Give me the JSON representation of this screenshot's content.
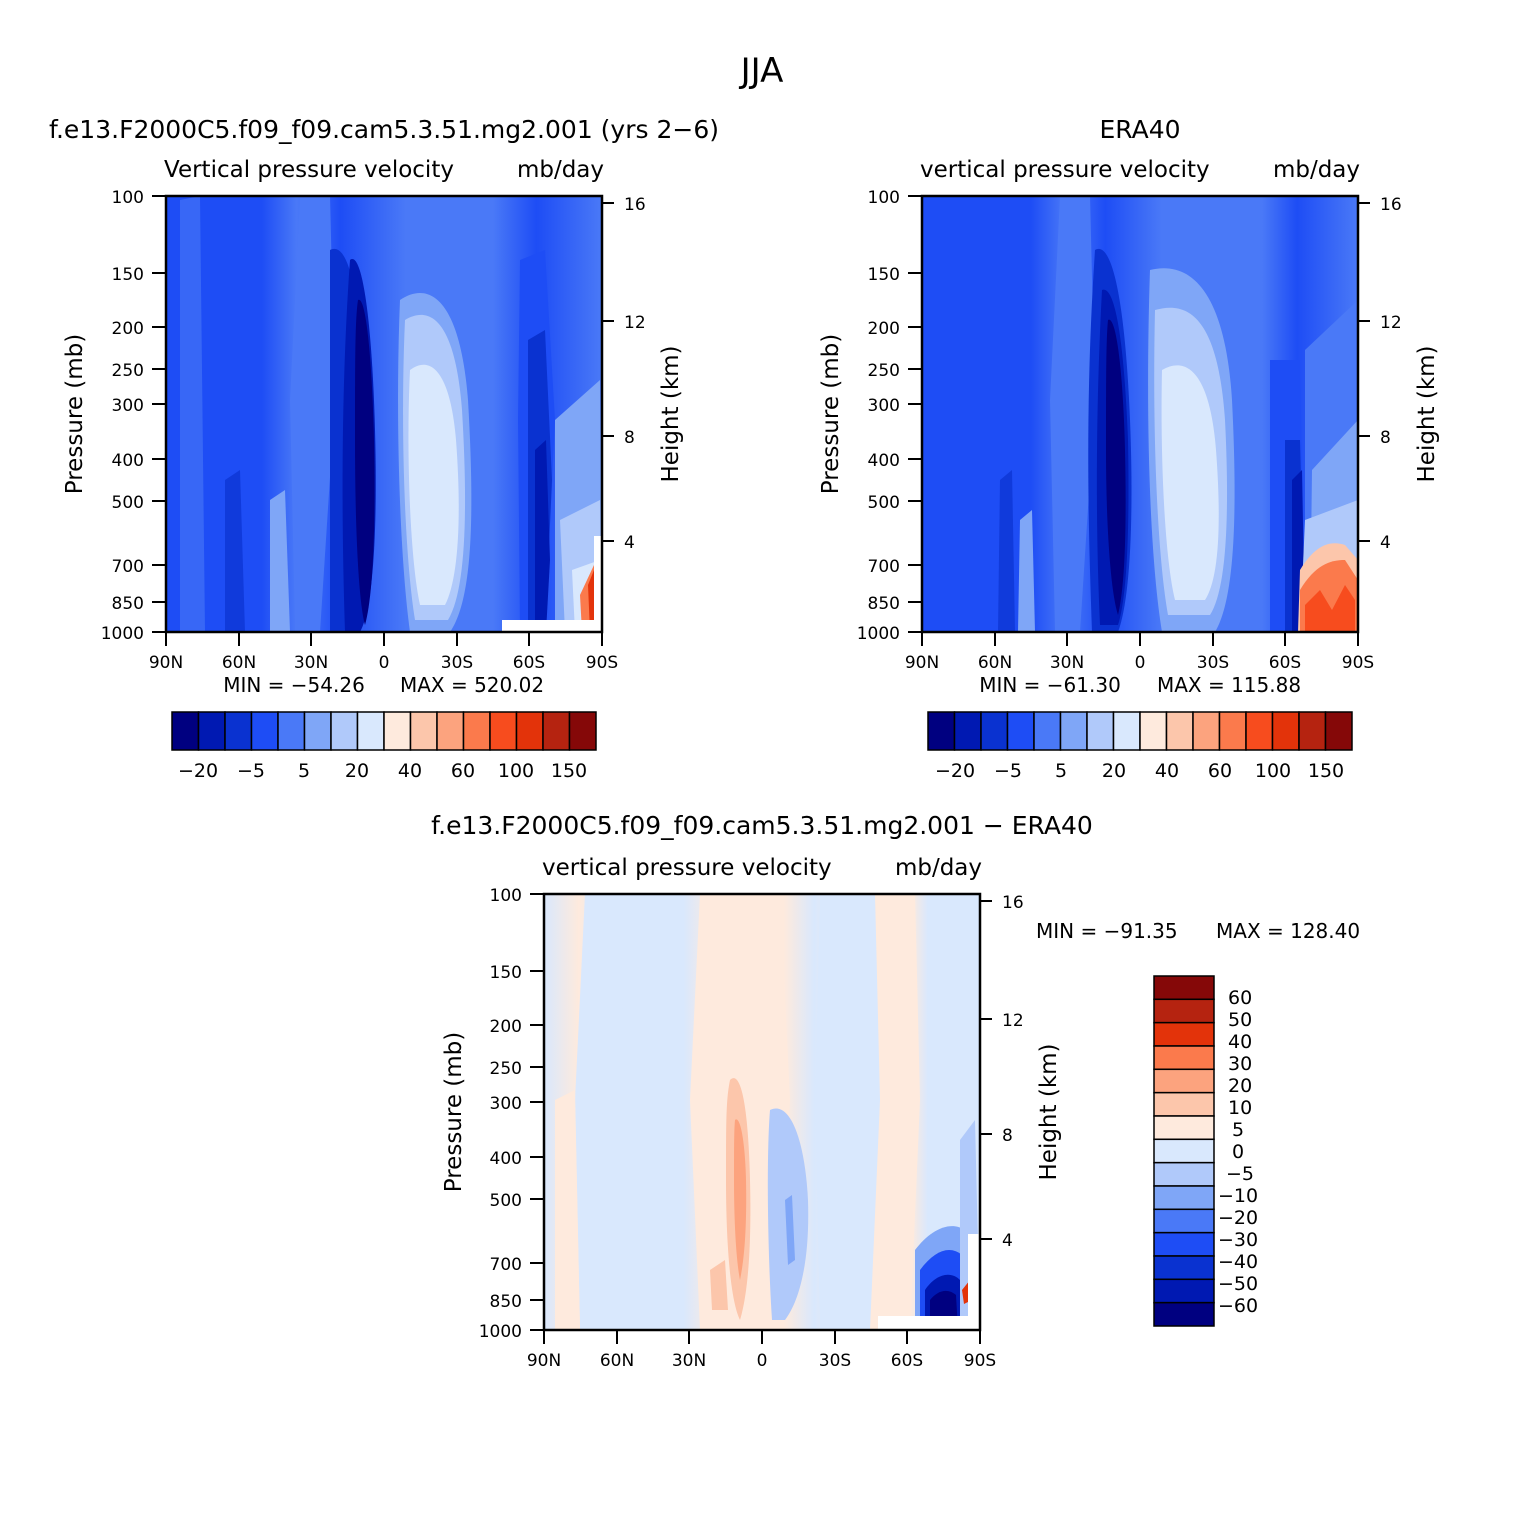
{
  "figure": {
    "title": "JJA"
  },
  "colors": {
    "twelve_level_palette": [
      "#000080",
      "#0019b2",
      "#0a32d0",
      "#1e4df5",
      "#4a79f7",
      "#7fa6f7",
      "#b0c9fa",
      "#d9e8fd",
      "#feeadd",
      "#fcc6ab",
      "#fca37e",
      "#fb7a4c",
      "#f74c1e",
      "#e3330a",
      "#b52310",
      "#850808"
    ],
    "difference_palette": [
      "#000080",
      "#0019b2",
      "#0a32d0",
      "#1e4df5",
      "#4a79f7",
      "#7fa6f7",
      "#b0c9fa",
      "#d9e8fd",
      "#feeadd",
      "#fcc6ab",
      "#fca37e",
      "#fb7a4c",
      "#e3330a",
      "#b52310",
      "#850808"
    ]
  },
  "chart_data": [
    {
      "type": "heatmap",
      "panel": "model",
      "case_title": "f.e13.F2000C5.f09_f09.cam5.3.51.mg2.001 (yrs 2−6)",
      "title": "Vertical pressure velocity",
      "units": "mb/day",
      "xlabel": "",
      "ylabel": "Pressure (mb)",
      "ylabel_right": "Height (km)",
      "x_ticks": [
        "90N",
        "60N",
        "30N",
        "0",
        "30S",
        "60S",
        "90S"
      ],
      "y_ticks": [
        "100",
        "150",
        "200",
        "250",
        "300",
        "400",
        "500",
        "700",
        "850",
        "1000"
      ],
      "y_ticks_right": [
        "16",
        "12",
        "8",
        "4"
      ],
      "xlim": [
        "90N",
        "90S"
      ],
      "ylim": [
        1000,
        100
      ],
      "min_label": "MIN = −54.26",
      "max_label": "MAX = 520.02",
      "min": -54.26,
      "max": 520.02,
      "colorbar_labels": [
        "−20",
        "−5",
        "5",
        "20",
        "40",
        "60",
        "100",
        "150"
      ]
    },
    {
      "type": "heatmap",
      "panel": "obs",
      "case_title": "ERA40",
      "title": "vertical pressure velocity",
      "units": "mb/day",
      "xlabel": "",
      "ylabel": "Pressure (mb)",
      "ylabel_right": "Height (km)",
      "x_ticks": [
        "90N",
        "60N",
        "30N",
        "0",
        "30S",
        "60S",
        "90S"
      ],
      "y_ticks": [
        "100",
        "150",
        "200",
        "250",
        "300",
        "400",
        "500",
        "700",
        "850",
        "1000"
      ],
      "y_ticks_right": [
        "16",
        "12",
        "8",
        "4"
      ],
      "xlim": [
        "90N",
        "90S"
      ],
      "ylim": [
        1000,
        100
      ],
      "min_label": "MIN = −61.30",
      "max_label": "MAX = 115.88",
      "min": -61.3,
      "max": 115.88,
      "colorbar_labels": [
        "−20",
        "−5",
        "5",
        "20",
        "40",
        "60",
        "100",
        "150"
      ]
    },
    {
      "type": "heatmap",
      "panel": "difference",
      "case_title": "f.e13.F2000C5.f09_f09.cam5.3.51.mg2.001 − ERA40",
      "title": "vertical pressure velocity",
      "units": "mb/day",
      "xlabel": "",
      "ylabel": "Pressure (mb)",
      "ylabel_right": "Height (km)",
      "x_ticks": [
        "90N",
        "60N",
        "30N",
        "0",
        "30S",
        "60S",
        "90S"
      ],
      "y_ticks": [
        "100",
        "150",
        "200",
        "250",
        "300",
        "400",
        "500",
        "700",
        "850",
        "1000"
      ],
      "y_ticks_right": [
        "16",
        "12",
        "8",
        "4"
      ],
      "xlim": [
        "90N",
        "90S"
      ],
      "ylim": [
        1000,
        100
      ],
      "min_label": "MIN = −91.35",
      "max_label": "MAX = 128.40",
      "min": -91.35,
      "max": 128.4,
      "colorbar_labels": [
        "60",
        "50",
        "40",
        "30",
        "20",
        "10",
        "5",
        "0",
        "−5",
        "−10",
        "−20",
        "−30",
        "−40",
        "−50",
        "−60"
      ]
    }
  ]
}
